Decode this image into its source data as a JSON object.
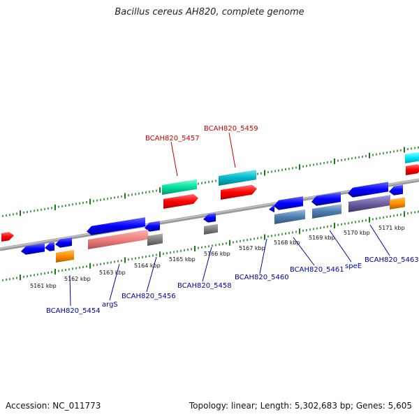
{
  "title": "Bacillus cereus AH820, complete genome",
  "footer": {
    "accession": "Accession: NC_011773",
    "summary": "Topology: linear; Length: 5,302,683 bp; Genes: 5,605"
  },
  "ticks": [
    {
      "label": "5161 kbp"
    },
    {
      "label": "5162 kbp"
    },
    {
      "label": "5163 kbp"
    },
    {
      "label": "5164 kbp"
    },
    {
      "label": "5165 kbp"
    },
    {
      "label": "5166 kbp"
    },
    {
      "label": "5167 kbp"
    },
    {
      "label": "5168 kbp"
    },
    {
      "label": "5169 kbp"
    },
    {
      "label": "5170 kbp"
    },
    {
      "label": "5171 kbp"
    }
  ],
  "labels": [
    {
      "text": "BCAH820_5457",
      "color": "#cc0000"
    },
    {
      "text": "BCAH820_5459",
      "color": "#cc0000"
    },
    {
      "text": "BCAH820_5454",
      "color": "#0000aa"
    },
    {
      "text": "argS",
      "color": "#0000aa"
    },
    {
      "text": "BCAH820_5456",
      "color": "#0000aa"
    },
    {
      "text": "BCAH820_5458",
      "color": "#0000aa"
    },
    {
      "text": "BCAH820_5460",
      "color": "#0000aa"
    },
    {
      "text": "BCAH820_5461",
      "color": "#0000aa"
    },
    {
      "text": "speE",
      "color": "#0000aa"
    },
    {
      "text": "BCAH820_5463",
      "color": "#0000aa"
    }
  ],
  "colors": {
    "forward_cds": "#ff0000",
    "reverse_cds": "#0000ff",
    "rna": "#ff8c00",
    "misc": "#808080",
    "teal": "#00b8c8",
    "green": "#00e0a0",
    "steel": "#4f7fb0",
    "salmon": "#f08080",
    "tick": "#1a7a1a",
    "backbone": "#888888"
  }
}
